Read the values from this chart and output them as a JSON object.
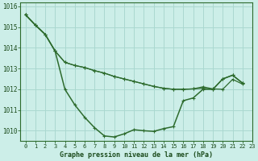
{
  "title": "Graphe pression niveau de la mer (hPa)",
  "bg_color": "#cceee8",
  "grid_color": "#aad8d0",
  "line_color": "#2d6b2d",
  "s1": [
    1015.6,
    1015.1,
    1014.65,
    1013.85,
    1012.0,
    1011.25,
    1010.65,
    1010.15,
    1009.75,
    1009.7,
    1009.85,
    1010.05,
    1010.0,
    1009.97,
    1010.1,
    1010.2,
    1011.45,
    1011.58,
    1012.0,
    1012.0,
    1012.5,
    1012.68,
    1012.3
  ],
  "s2": [
    1015.6,
    1015.1,
    1014.65,
    1013.85,
    1013.3,
    1013.15,
    1013.05,
    1012.9,
    1012.78,
    1012.62,
    1012.5,
    1012.38,
    1012.26,
    1012.14,
    1012.05,
    1012.0,
    1012.0,
    1012.02,
    1012.05,
    1012.0,
    1012.5,
    1012.68,
    1012.3
  ],
  "s3": [
    1015.6,
    1015.1,
    1014.65,
    1013.85,
    1013.3,
    1013.15,
    1013.05,
    1012.9,
    1012.78,
    1012.62,
    1012.5,
    1012.38,
    1012.26,
    1012.14,
    1012.05,
    1012.0,
    1012.0,
    1012.02,
    1012.12,
    1012.02,
    1012.0,
    1012.48,
    1012.25
  ],
  "xlim": [
    -0.5,
    23
  ],
  "ylim": [
    1009.5,
    1016.2
  ],
  "yticks": [
    1010,
    1011,
    1012,
    1013,
    1014,
    1015,
    1016
  ],
  "xticks": [
    0,
    1,
    2,
    3,
    4,
    5,
    6,
    7,
    8,
    9,
    10,
    11,
    12,
    13,
    14,
    15,
    16,
    17,
    18,
    19,
    20,
    21,
    22,
    23
  ]
}
